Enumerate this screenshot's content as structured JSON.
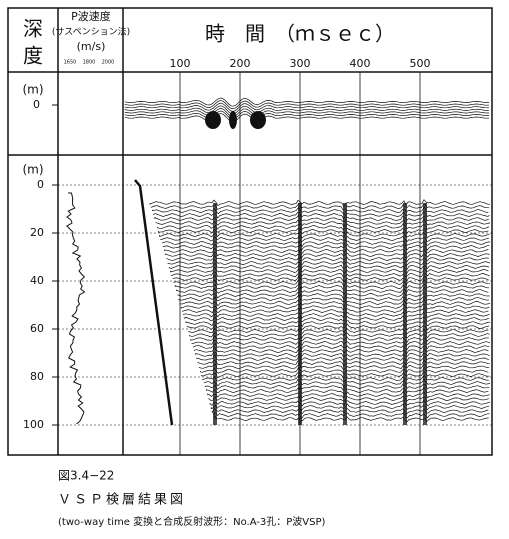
{
  "header": {
    "depth_label_1": "深",
    "depth_label_2": "度",
    "velocity_title": "P波速度",
    "velocity_method": "(サスペンション法)",
    "velocity_unit": "(m/s)",
    "velocity_ticks": [
      "1650",
      "1800",
      "2000"
    ],
    "time_title": "時　間　（ｍｓｅｃ）",
    "time_ticks": [
      100,
      200,
      300,
      400,
      500
    ]
  },
  "upper_panel": {
    "unit": "(m)",
    "depth_ticks": [
      0
    ]
  },
  "lower_panel": {
    "unit": "(m)",
    "depth_ticks": [
      0,
      20,
      40,
      60,
      80,
      100
    ]
  },
  "caption": {
    "figure_number": "図3.4−22",
    "title": "ＶＳＰ検層結果図",
    "subtitle": "(two-way time 変換と合成反射波形：No.A-3孔：P波VSP)"
  }
}
